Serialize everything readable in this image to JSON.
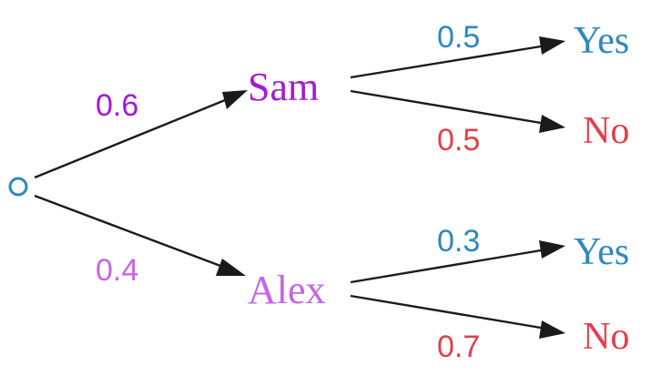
{
  "colors": {
    "sam": "#a21ad6",
    "alex": "#c465e6",
    "yes": "#2f87bd",
    "no": "#e0404c",
    "root": "#2f87bd",
    "edge": "#1a1a1a"
  },
  "tree": {
    "branch_sam_prob": "0.6",
    "branch_alex_prob": "0.4",
    "sam": {
      "label": "Sam",
      "yes_prob": "0.5",
      "no_prob": "0.5",
      "yes_label": "Yes",
      "no_label": "No"
    },
    "alex": {
      "label": "Alex",
      "yes_prob": "0.3",
      "no_prob": "0.7",
      "yes_label": "Yes",
      "no_label": "No"
    }
  }
}
